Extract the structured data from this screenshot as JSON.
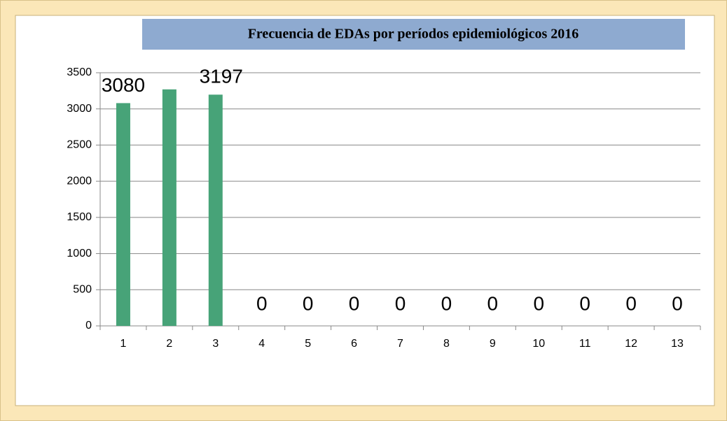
{
  "chart_data": {
    "type": "bar",
    "title": "Frecuencia de EDAs por períodos epidemiológicos 2016",
    "categories": [
      "1",
      "2",
      "3",
      "4",
      "5",
      "6",
      "7",
      "8",
      "9",
      "10",
      "11",
      "12",
      "13"
    ],
    "values": [
      3080,
      3270,
      3197,
      0,
      0,
      0,
      0,
      0,
      0,
      0,
      0,
      0,
      0
    ],
    "value_labels": [
      "3080",
      null,
      "3197",
      "0",
      "0",
      "0",
      "0",
      "0",
      "0",
      "0",
      "0",
      "0",
      "0"
    ],
    "color": "#47a378",
    "ylim": [
      0,
      3500
    ],
    "yticks": [
      0,
      500,
      1000,
      1500,
      2000,
      2500,
      3000,
      3500
    ],
    "grid": true
  }
}
